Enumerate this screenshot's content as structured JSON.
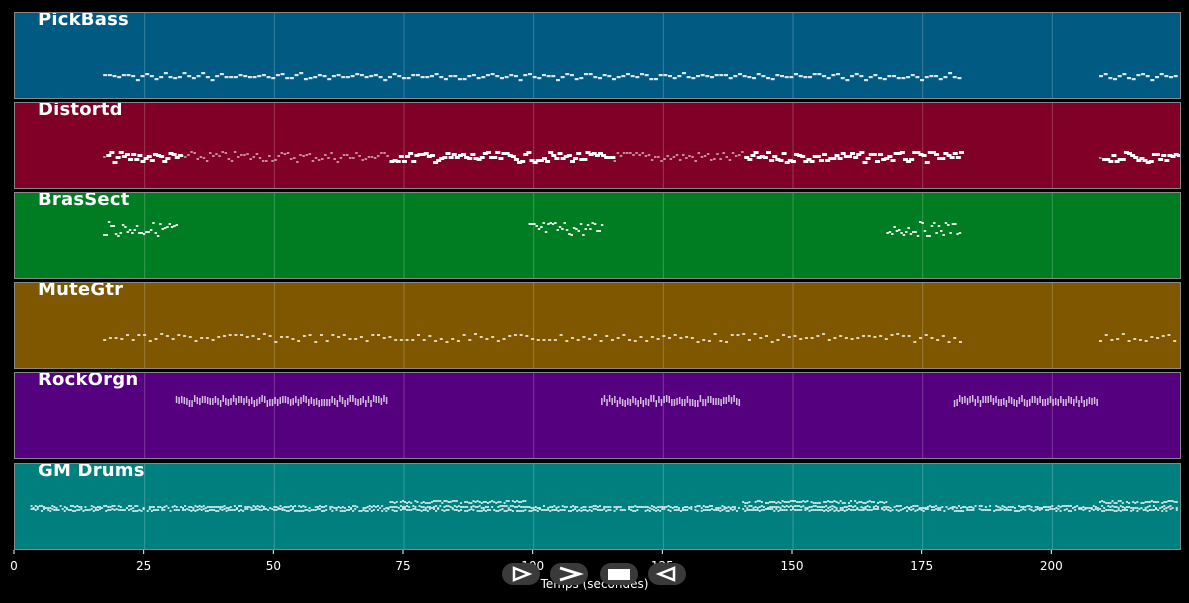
{
  "tracks": [
    {
      "name": "PickBass",
      "color": "#005a82",
      "note_color": "#ffffff"
    },
    {
      "name": "Distortd",
      "color": "#800028",
      "note_color": "#ffffff"
    },
    {
      "name": "BrasSect",
      "color": "#007d22",
      "note_color": "#ffffff"
    },
    {
      "name": "MuteGtr",
      "color": "#7f5700",
      "note_color": "#ffffff"
    },
    {
      "name": "RockOrgn",
      "color": "#55007f",
      "note_color": "#ffffff"
    },
    {
      "name": "GM Drums",
      "color": "#007f7f",
      "note_color": "#ffffff"
    }
  ],
  "axis": {
    "label": "Temps (secondes)",
    "ticks": [
      "0",
      "25",
      "50",
      "75",
      "100",
      "125",
      "150",
      "175",
      "200"
    ],
    "max": 225
  },
  "playback": {
    "buttons": [
      {
        "name": "play-button",
        "icon": "play-icon"
      },
      {
        "name": "fast-forward-button",
        "icon": "fast-forward-icon"
      },
      {
        "name": "stop-button",
        "icon": "stop-icon"
      },
      {
        "name": "rewind-button",
        "icon": "rewind-icon"
      }
    ]
  }
}
